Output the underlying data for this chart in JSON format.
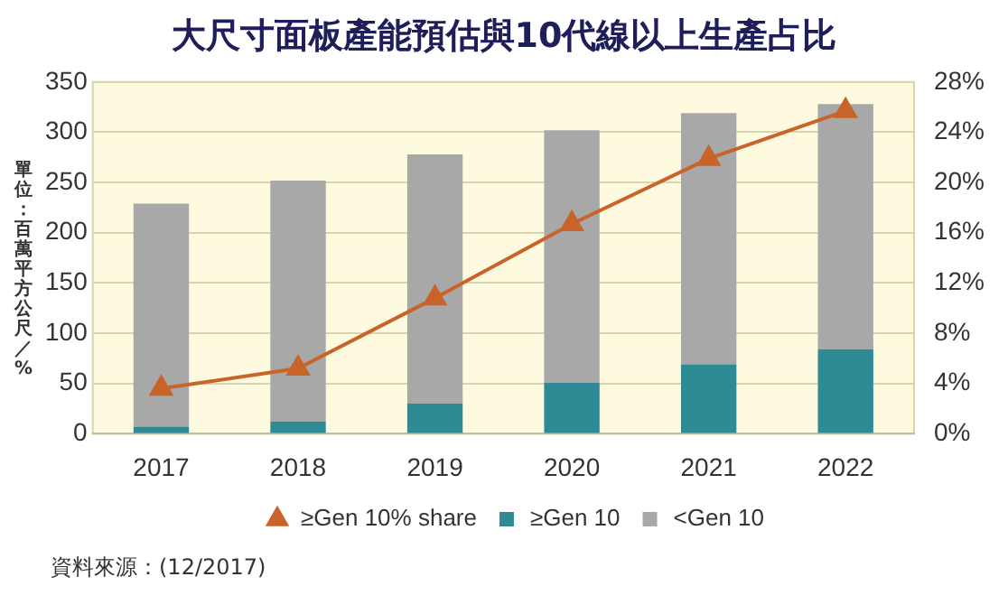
{
  "chart_data": {
    "type": "bar",
    "title": "大尺寸面板產能預估與10代線以上生產占比",
    "ylabel": "單位：百萬平方公尺／%",
    "categories": [
      "2017",
      "2018",
      "2019",
      "2020",
      "2021",
      "2022"
    ],
    "stacked": true,
    "series": [
      {
        "name": "≥Gen 10",
        "color": "#2e8a94",
        "values": [
          7,
          12,
          30,
          51,
          69,
          84
        ]
      },
      {
        "name": "<Gen 10",
        "color": "#a8a8a8",
        "values": [
          222,
          240,
          248,
          251,
          250,
          244
        ]
      },
      {
        "name": "≥Gen 10% share",
        "type": "line",
        "axis": "y2",
        "color": "#c8642a",
        "marker": "triangle",
        "line_style": "solid",
        "values": [
          3.6,
          5.2,
          10.8,
          16.7,
          21.9,
          25.7
        ]
      }
    ],
    "ylim": [
      0,
      350
    ],
    "yticks": [
      0,
      50,
      100,
      150,
      200,
      250,
      300,
      350
    ],
    "y2lim": [
      0,
      28
    ],
    "y2ticks": [
      {
        "value": 0,
        "label": "0%"
      },
      {
        "value": 4,
        "label": "4%"
      },
      {
        "value": 8,
        "label": "8%"
      },
      {
        "value": 12,
        "label": "12%"
      },
      {
        "value": 16,
        "label": "16%"
      },
      {
        "value": 20,
        "label": "20%"
      },
      {
        "value": 24,
        "label": "24%"
      },
      {
        "value": 28,
        "label": "28%"
      }
    ],
    "grid": "y",
    "legend": "bottom",
    "annotations": [
      "資料來源：(12/2017)"
    ]
  }
}
